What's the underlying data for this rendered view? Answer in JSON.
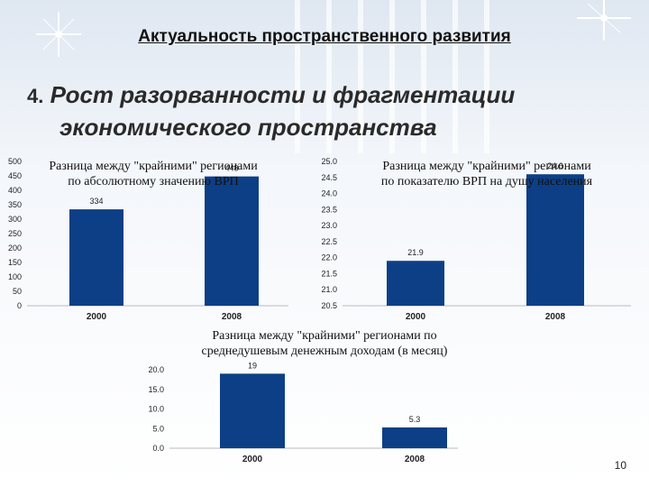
{
  "slide": {
    "title": "Актуальность пространственного развития",
    "heading_number": "4.",
    "heading_line1": "Рост разорванности и фрагментации",
    "heading_line2": "экономического пространства",
    "page_number": "10"
  },
  "chart_data": [
    {
      "type": "bar",
      "title_line1": "Разница между \"крайними\" регионами",
      "title_line2": "по абсолютному значению ВРП",
      "categories": [
        "2000",
        "2008"
      ],
      "values": [
        334,
        448
      ],
      "value_labels": [
        "334",
        "448"
      ],
      "y_ticks": [
        "0",
        "50",
        "100",
        "150",
        "200",
        "250",
        "300",
        "350",
        "400",
        "450",
        "500"
      ],
      "ylim": [
        0,
        500
      ],
      "bar_color": "#0d3f86",
      "legend": "none"
    },
    {
      "type": "bar",
      "title_line1": "Разница между \"крайними\" регионами",
      "title_line2": "по показателю ВРП на душу населения",
      "categories": [
        "2000",
        "2008"
      ],
      "values": [
        21.9,
        24.6
      ],
      "value_labels": [
        "21.9",
        "24.6"
      ],
      "y_ticks": [
        "20.5",
        "21.0",
        "21.5",
        "22.0",
        "22.5",
        "23.0",
        "23.5",
        "24.0",
        "24.5",
        "25.0"
      ],
      "ylim": [
        20.5,
        25.0
      ],
      "bar_color": "#0d3f86",
      "legend": "none"
    },
    {
      "type": "bar",
      "title_line1": "Разница между \"крайними\" регионами по",
      "title_line2": "среднедушевым денежным доходам (в месяц)",
      "categories": [
        "2000",
        "2008"
      ],
      "values": [
        19,
        5.3
      ],
      "value_labels": [
        "19",
        "5.3"
      ],
      "y_ticks": [
        "0.0",
        "5.0",
        "10.0",
        "15.0",
        "20.0"
      ],
      "ylim": [
        0,
        20
      ],
      "bar_color": "#0d3f86",
      "legend": "none"
    }
  ]
}
